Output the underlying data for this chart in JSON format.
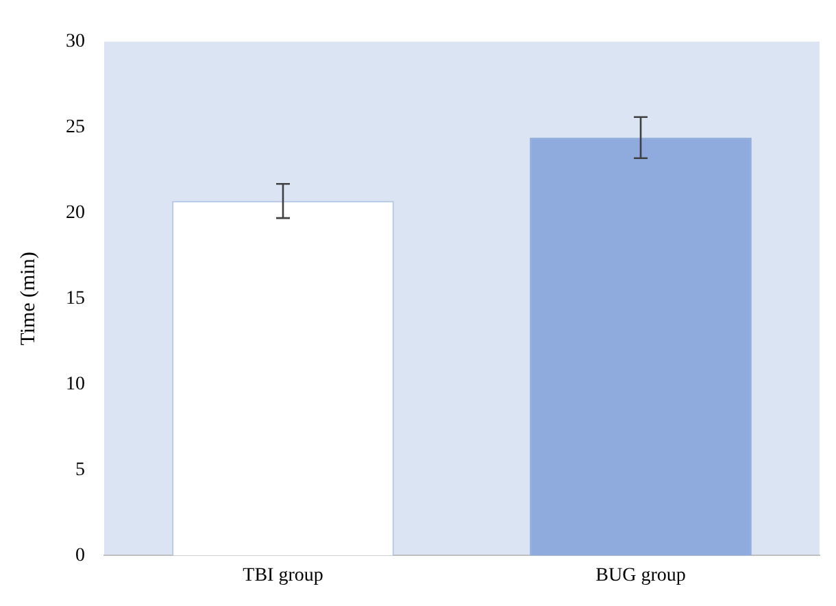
{
  "chart_data": {
    "type": "bar",
    "ylabel": "Time (min)",
    "categories": [
      "TBI group",
      "BUG group"
    ],
    "values": [
      20.7,
      24.4
    ],
    "errors": [
      1.0,
      1.2
    ],
    "colors": [
      "#ffffff",
      "#8faadc"
    ],
    "ylim": [
      0,
      30
    ],
    "yticks": [
      0,
      5,
      10,
      15,
      20,
      25,
      30
    ],
    "grid": false,
    "legend": false
  }
}
